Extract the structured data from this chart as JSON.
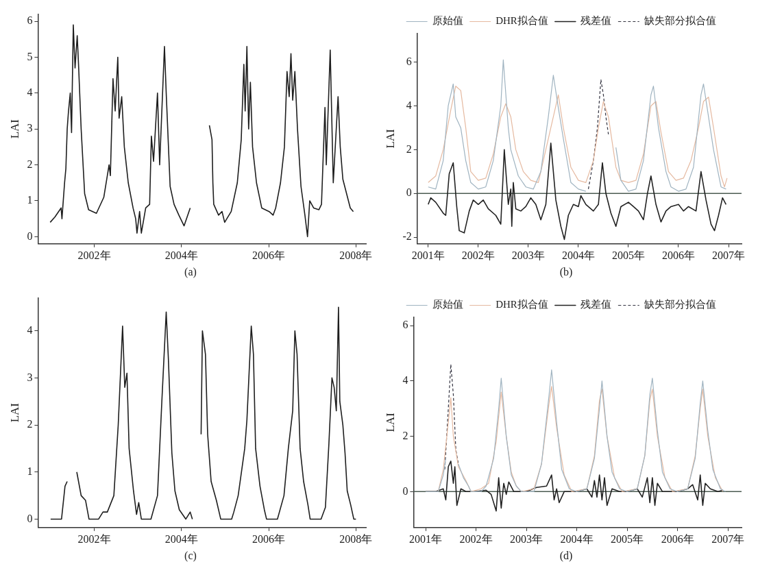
{
  "chart_data": [
    {
      "type": "line",
      "ylabel": "LAI",
      "annotations": [
        "(a)"
      ],
      "xlim": [
        2000.71,
        2008.23
      ],
      "xticks": [
        {
          "value": 2002,
          "label": "2002年"
        },
        {
          "value": 2004,
          "label": "2004年"
        },
        {
          "value": 2006,
          "label": "2006年"
        },
        {
          "value": 2008,
          "label": "2008年"
        }
      ],
      "ylim": [
        -0.2,
        6.2
      ],
      "yticks": [
        0,
        1,
        2,
        3,
        4,
        5,
        6
      ],
      "grid": false,
      "legend": false,
      "marker": "none",
      "series": [
        {
          "color": "#1e1e1e",
          "x": [
            2000.99,
            2001.1,
            2001.24,
            2001.26,
            2001.32,
            2001.35,
            2001.38,
            2001.41,
            2001.45,
            2001.48,
            2001.52,
            2001.56,
            2001.61,
            2001.64,
            2001.7,
            2001.78,
            2001.87,
            2002.05,
            2002.22,
            2002.34,
            2002.37,
            2002.43,
            2002.48,
            2002.54,
            2002.57,
            2002.63,
            2002.69,
            2002.78,
            2002.89,
            2002.95,
            2002.98,
            2003.04,
            2003.08,
            2003.18,
            2003.27,
            2003.31,
            2003.36,
            2003.45,
            2003.5,
            2003.56,
            2003.61,
            2003.65,
            2003.74,
            2003.83,
            2003.94,
            2004.06,
            2004.2,
            2004.4,
            2004.64,
            2004.7,
            2004.72,
            2004.74,
            2004.85,
            2004.93,
            2004.99,
            2005.14,
            2005.28,
            2005.37,
            2005.43,
            2005.46,
            2005.5,
            2005.54,
            2005.58,
            2005.63,
            2005.72,
            2005.84,
            2006.01,
            2006.1,
            2006.16,
            2006.27,
            2006.36,
            2006.42,
            2006.47,
            2006.51,
            2006.55,
            2006.6,
            2006.66,
            2006.74,
            2006.83,
            2006.89,
            2006.94,
            2007.03,
            2007.15,
            2007.21,
            2007.29,
            2007.32,
            2007.41,
            2007.48,
            2007.59,
            2007.64,
            2007.7,
            2007.87,
            2007.94
          ],
          "values": [
            0.4,
            0.55,
            0.8,
            0.5,
            1.5,
            1.9,
            3.0,
            3.5,
            4.0,
            2.9,
            5.9,
            4.7,
            5.6,
            4.8,
            3.0,
            1.2,
            0.75,
            0.65,
            1.1,
            2.0,
            1.7,
            4.4,
            3.5,
            5.0,
            3.3,
            3.9,
            2.5,
            1.5,
            0.8,
            0.5,
            0.1,
            0.7,
            0.1,
            0.8,
            0.9,
            2.8,
            2.1,
            4.0,
            2.0,
            3.8,
            5.3,
            4.0,
            1.4,
            0.9,
            0.6,
            0.3,
            0.8,
            null,
            3.1,
            2.7,
            1.5,
            0.9,
            0.6,
            0.7,
            0.4,
            0.7,
            1.5,
            2.7,
            4.8,
            3.5,
            5.3,
            3.0,
            4.3,
            2.5,
            1.5,
            0.8,
            0.7,
            0.6,
            0.8,
            1.5,
            2.5,
            4.6,
            3.9,
            5.1,
            3.8,
            4.6,
            3.0,
            1.4,
            0.6,
            0.0,
            1.0,
            0.8,
            0.75,
            0.9,
            3.6,
            2.0,
            5.2,
            1.5,
            3.9,
            2.5,
            1.6,
            0.8,
            0.7
          ]
        }
      ]
    },
    {
      "type": "line",
      "ylabel": "LAI",
      "annotations": [
        "(b)"
      ],
      "xlim": [
        2000.78,
        2007.26
      ],
      "xticks": [
        {
          "value": 2001,
          "label": "2001年"
        },
        {
          "value": 2002,
          "label": "2002年"
        },
        {
          "value": 2003,
          "label": "2003年"
        },
        {
          "value": 2004,
          "label": "2004年"
        },
        {
          "value": 2005,
          "label": "2005年"
        },
        {
          "value": 2006,
          "label": "2006年"
        },
        {
          "value": 2007,
          "label": "2007年"
        }
      ],
      "ylim": [
        -2.3,
        7.3
      ],
      "yticks": [
        -2,
        0,
        2,
        4,
        6
      ],
      "grid": false,
      "legend": "top",
      "marker": "none",
      "ref_lines": [
        {
          "axis": "y",
          "value": 0,
          "color": "#4a5a50"
        }
      ],
      "series": [
        {
          "name": "原始值",
          "color": "#9fb3c0",
          "x": [
            2001.0,
            2001.15,
            2001.3,
            2001.4,
            2001.5,
            2001.55,
            2001.65,
            2001.75,
            2001.85,
            2002.0,
            2002.15,
            2002.3,
            2002.45,
            2002.5,
            2002.6,
            2002.65,
            2002.8,
            2002.95,
            2003.1,
            2003.25,
            2003.4,
            2003.5,
            2003.6,
            2003.7,
            2003.85,
            2004.0,
            2004.15,
            2004.3,
            2004.75,
            2004.85,
            2005.0,
            2005.15,
            2005.3,
            2005.45,
            2005.5,
            2005.6,
            2005.75,
            2005.85,
            2006.0,
            2006.15,
            2006.3,
            2006.45,
            2006.5,
            2006.6,
            2006.7,
            2006.85,
            2006.95
          ],
          "values": [
            0.3,
            0.2,
            1.5,
            4.0,
            5.0,
            3.5,
            3.0,
            1.5,
            0.5,
            0.2,
            0.3,
            1.5,
            4.0,
            6.1,
            3.0,
            2.0,
            0.8,
            0.3,
            0.2,
            1.0,
            3.5,
            5.4,
            3.9,
            2.5,
            0.5,
            0.2,
            0.1,
            null,
            2.1,
            0.6,
            0.1,
            0.2,
            1.5,
            4.5,
            4.9,
            3.0,
            1.0,
            0.3,
            0.1,
            0.2,
            1.2,
            4.5,
            5.0,
            3.5,
            2.0,
            0.3,
            0.2
          ]
        },
        {
          "name": "DHR拟合值",
          "color": "#e5b9a0",
          "x": [
            2001.0,
            2001.15,
            2001.3,
            2001.45,
            2001.55,
            2001.65,
            2001.75,
            2001.85,
            2002.0,
            2002.15,
            2002.3,
            2002.45,
            2002.55,
            2002.65,
            2002.75,
            2002.9,
            2003.05,
            2003.2,
            2003.35,
            2003.45,
            2003.6,
            2003.7,
            2003.85,
            2004.0,
            2004.15,
            2004.3,
            2004.4,
            2004.5,
            2004.6,
            2004.75,
            2004.85,
            2005.0,
            2005.15,
            2005.3,
            2005.45,
            2005.55,
            2005.65,
            2005.8,
            2005.95,
            2006.1,
            2006.25,
            2006.4,
            2006.5,
            2006.6,
            2006.7,
            2006.85,
            2006.92,
            2006.97
          ],
          "values": [
            0.5,
            0.8,
            2.0,
            3.8,
            4.9,
            4.7,
            3.0,
            1.0,
            0.6,
            0.7,
            1.8,
            3.5,
            4.1,
            3.5,
            2.0,
            1.0,
            0.6,
            0.5,
            2.0,
            3.0,
            4.5,
            3.0,
            1.2,
            0.6,
            0.5,
            1.5,
            3.0,
            4.2,
            3.5,
            1.2,
            0.6,
            0.5,
            0.6,
            1.8,
            4.0,
            4.2,
            2.8,
            1.0,
            0.6,
            0.7,
            1.5,
            3.0,
            4.2,
            4.4,
            3.0,
            0.8,
            0.3,
            0.7
          ]
        },
        {
          "name": "残差值",
          "color": "#222222",
          "x": [
            2001.0,
            2001.05,
            2001.15,
            2001.3,
            2001.35,
            2001.42,
            2001.5,
            2001.57,
            2001.62,
            2001.72,
            2001.82,
            2001.9,
            2002.0,
            2002.1,
            2002.2,
            2002.35,
            2002.45,
            2002.5,
            2002.52,
            2002.6,
            2002.65,
            2002.67,
            2002.7,
            2002.75,
            2002.85,
            2002.95,
            2003.05,
            2003.15,
            2003.25,
            2003.35,
            2003.45,
            2003.55,
            2003.65,
            2003.72,
            2003.8,
            2003.9,
            2004.0,
            2004.05,
            2004.15,
            2004.3,
            2004.4,
            2004.48,
            2004.55,
            2004.65,
            2004.75,
            2004.85,
            2005.0,
            2005.1,
            2005.2,
            2005.3,
            2005.38,
            2005.45,
            2005.55,
            2005.65,
            2005.75,
            2005.85,
            2006.0,
            2006.1,
            2006.2,
            2006.35,
            2006.45,
            2006.55,
            2006.65,
            2006.72,
            2006.8,
            2006.88,
            2006.95
          ],
          "values": [
            -0.5,
            -0.2,
            -0.4,
            -0.9,
            -1.0,
            0.9,
            1.4,
            -0.6,
            -1.7,
            -1.8,
            -0.8,
            -0.3,
            -0.5,
            -0.3,
            -0.7,
            -1.0,
            -1.4,
            1.0,
            2.0,
            -0.5,
            0.2,
            -1.5,
            0.5,
            -0.7,
            -0.8,
            -0.6,
            -0.2,
            -0.5,
            -1.2,
            -0.5,
            2.3,
            -0.3,
            -1.5,
            -2.1,
            -1.0,
            -0.5,
            -0.6,
            -0.1,
            -0.5,
            -0.8,
            -0.5,
            1.4,
            0.0,
            -0.9,
            -1.5,
            -0.6,
            -0.4,
            -0.6,
            -0.8,
            -1.2,
            0.0,
            0.8,
            -0.5,
            -1.3,
            -0.8,
            -0.6,
            -0.5,
            -0.8,
            -0.6,
            -0.8,
            1.0,
            -0.3,
            -1.4,
            -1.7,
            -1.0,
            -0.2,
            -0.5
          ]
        },
        {
          "name": "缺失部分拟合值",
          "color": "#333340",
          "line_style": "dashed",
          "x": [
            2004.2,
            2004.3,
            2004.38,
            2004.45,
            2004.5,
            2004.55,
            2004.6
          ],
          "values": [
            0.2,
            1.5,
            3.0,
            5.2,
            4.5,
            3.5,
            2.7
          ]
        }
      ]
    },
    {
      "type": "line",
      "ylabel": "LAI",
      "annotations": [
        "(c)"
      ],
      "xlim": [
        2000.71,
        2008.23
      ],
      "xticks": [
        {
          "value": 2002,
          "label": "2002年"
        },
        {
          "value": 2004,
          "label": "2004年"
        },
        {
          "value": 2006,
          "label": "2006年"
        },
        {
          "value": 2008,
          "label": "2008年"
        }
      ],
      "ylim": [
        -0.18,
        4.7
      ],
      "yticks": [
        0,
        1,
        2,
        3,
        4
      ],
      "grid": false,
      "legend": false,
      "marker": "none",
      "series": [
        {
          "color": "#1e1e1e",
          "x": [
            2001.0,
            2001.25,
            2001.33,
            2001.38,
            2001.5,
            2001.6,
            2001.7,
            2001.8,
            2001.88,
            2002.1,
            2002.2,
            2002.3,
            2002.45,
            2002.55,
            2002.65,
            2002.7,
            2002.75,
            2002.8,
            2002.9,
            2002.97,
            2003.02,
            2003.08,
            2003.3,
            2003.45,
            2003.55,
            2003.65,
            2003.7,
            2003.78,
            2003.85,
            2003.95,
            2004.1,
            2004.2,
            2004.25,
            2004.35,
            2004.45,
            2004.48,
            2004.55,
            2004.6,
            2004.68,
            2004.8,
            2004.9,
            2005.15,
            2005.2,
            2005.3,
            2005.45,
            2005.5,
            2005.6,
            2005.65,
            2005.7,
            2005.8,
            2005.9,
            2005.95,
            2006.2,
            2006.35,
            2006.45,
            2006.55,
            2006.6,
            2006.65,
            2006.72,
            2006.8,
            2006.9,
            2006.95,
            2007.2,
            2007.3,
            2007.38,
            2007.45,
            2007.5,
            2007.55,
            2007.6,
            2007.63,
            2007.7,
            2007.75,
            2007.8,
            2007.88,
            2007.95,
            2008.0
          ],
          "values": [
            0,
            0,
            0.7,
            0.8,
            null,
            1.0,
            0.5,
            0.4,
            0,
            0,
            0.15,
            0.15,
            0.5,
            2.0,
            4.1,
            2.8,
            3.1,
            1.5,
            0.6,
            0.1,
            0.35,
            0,
            0,
            0.5,
            2.5,
            4.4,
            3.4,
            1.4,
            0.6,
            0.2,
            0,
            0.15,
            0,
            null,
            1.8,
            4.0,
            3.5,
            1.8,
            0.8,
            0.4,
            0,
            0,
            0.15,
            0.5,
            1.5,
            2.1,
            4.1,
            3.5,
            1.5,
            0.7,
            0.2,
            0,
            0,
            0.5,
            1.5,
            2.3,
            4.0,
            3.5,
            1.5,
            0.8,
            0.3,
            0,
            0,
            0.25,
            1.6,
            3.0,
            2.8,
            2.3,
            4.5,
            2.5,
            2.0,
            1.4,
            0.6,
            0.3,
            0,
            0
          ]
        }
      ]
    },
    {
      "type": "line",
      "ylabel": "LAI",
      "annotations": [
        "(d)"
      ],
      "xlim": [
        2000.76,
        2007.27
      ],
      "xticks": [
        {
          "value": 2001,
          "label": "2001年"
        },
        {
          "value": 2002,
          "label": "2002年"
        },
        {
          "value": 2003,
          "label": "2003年"
        },
        {
          "value": 2004,
          "label": "2004年"
        },
        {
          "value": 2005,
          "label": "2005年"
        },
        {
          "value": 2006,
          "label": "2006年"
        },
        {
          "value": 2007,
          "label": "2007年"
        }
      ],
      "ylim": [
        -1.3,
        6.3
      ],
      "yticks": [
        0,
        2,
        4,
        6
      ],
      "grid": false,
      "legend": "top",
      "marker": "none",
      "ref_lines": [
        {
          "axis": "y",
          "value": 0,
          "color": "#4a5a50"
        }
      ],
      "series": [
        {
          "name": "原始值",
          "color": "#9fb3c0",
          "x": [
            2001.0,
            2001.25,
            2001.35,
            2001.4,
            2001.45,
            2001.65,
            2001.75,
            2001.85,
            2001.9,
            2002.1,
            2002.2,
            2002.35,
            2002.45,
            2002.5,
            2002.6,
            2002.7,
            2002.8,
            2002.9,
            2003.15,
            2003.3,
            2003.45,
            2003.5,
            2003.6,
            2003.7,
            2003.85,
            2004.0,
            2004.2,
            2004.35,
            2004.45,
            2004.5,
            2004.6,
            2004.7,
            2004.85,
            2005.0,
            2005.2,
            2005.35,
            2005.45,
            2005.5,
            2005.6,
            2005.7,
            2005.85,
            2006.0,
            2006.2,
            2006.35,
            2006.45,
            2006.5,
            2006.6,
            2006.7,
            2006.85,
            2006.95
          ],
          "values": [
            0,
            0,
            0.6,
            1.2,
            null,
            1.0,
            0.5,
            0.2,
            0,
            0,
            0.2,
            1.2,
            3.0,
            4.1,
            2.0,
            0.6,
            0.2,
            0,
            0,
            1.0,
            3.5,
            4.4,
            2.5,
            0.8,
            0.1,
            0,
            0.1,
            1.2,
            3.0,
            4.0,
            2.0,
            0.7,
            0.1,
            0,
            0.1,
            1.3,
            3.5,
            4.1,
            2.2,
            0.7,
            0.1,
            0,
            0.1,
            1.2,
            3.2,
            4.0,
            2.2,
            0.8,
            0.1,
            0
          ]
        },
        {
          "name": "DHR拟合值",
          "color": "#e5b9a0",
          "x": [
            2001.0,
            2001.25,
            2001.35,
            2001.45,
            2001.5,
            2001.55,
            2001.65,
            2001.8,
            2001.9,
            2002.1,
            2002.25,
            2002.4,
            2002.5,
            2002.6,
            2002.7,
            2002.8,
            2002.9,
            2003.15,
            2003.3,
            2003.45,
            2003.5,
            2003.6,
            2003.75,
            2003.9,
            2004.2,
            2004.35,
            2004.45,
            2004.5,
            2004.6,
            2004.75,
            2004.9,
            2005.2,
            2005.35,
            2005.45,
            2005.5,
            2005.6,
            2005.75,
            2005.9,
            2006.2,
            2006.35,
            2006.45,
            2006.5,
            2006.6,
            2006.75,
            2006.9
          ],
          "values": [
            0,
            0,
            0.8,
            2.5,
            3.4,
            2.0,
            0.9,
            0.4,
            0,
            0.1,
            0.3,
            1.8,
            3.6,
            2.0,
            0.7,
            0.2,
            0,
            0.1,
            1.0,
            3.2,
            3.8,
            2.3,
            0.6,
            0,
            0.1,
            1.3,
            3.3,
            3.7,
            2.0,
            0.5,
            0,
            0.1,
            1.3,
            3.3,
            3.7,
            2.0,
            0.5,
            0,
            0.1,
            1.3,
            3.0,
            3.7,
            2.0,
            0.5,
            0
          ]
        },
        {
          "name": "残差值",
          "color": "#222222",
          "x": [
            2001.0,
            2001.2,
            2001.35,
            2001.4,
            2001.45,
            2001.5,
            2001.55,
            2001.58,
            2001.62,
            2001.7,
            2001.8,
            2002.0,
            2002.2,
            2002.3,
            2002.4,
            2002.45,
            2002.5,
            2002.55,
            2002.6,
            2002.65,
            2002.75,
            2003.0,
            2003.2,
            2003.4,
            2003.5,
            2003.55,
            2003.6,
            2003.65,
            2003.75,
            2004.0,
            2004.2,
            2004.3,
            2004.35,
            2004.4,
            2004.45,
            2004.5,
            2004.55,
            2004.6,
            2004.7,
            2004.85,
            2005.0,
            2005.2,
            2005.3,
            2005.4,
            2005.45,
            2005.5,
            2005.55,
            2005.6,
            2005.7,
            2006.0,
            2006.2,
            2006.3,
            2006.4,
            2006.45,
            2006.5,
            2006.55,
            2006.65,
            2006.8,
            2006.9
          ],
          "values": [
            0,
            0,
            0.1,
            -0.3,
            0.9,
            1.1,
            0.3,
            0.9,
            -0.5,
            0.1,
            0,
            0,
            0.05,
            -0.1,
            -0.7,
            0.5,
            -0.6,
            0.3,
            -0.1,
            0.35,
            0,
            0,
            0.15,
            0.2,
            0.6,
            -0.3,
            0.1,
            -0.4,
            0,
            0,
            0.1,
            -0.2,
            0.4,
            -0.2,
            0.6,
            -0.3,
            0.5,
            -0.5,
            0.1,
            0,
            0,
            0.1,
            -0.2,
            0.5,
            -0.4,
            0.5,
            -0.5,
            0.3,
            0,
            0,
            0.1,
            0.25,
            -0.3,
            0.6,
            -0.5,
            0.3,
            0.1,
            0,
            0.05
          ]
        },
        {
          "name": "缺失部分拟合值",
          "color": "#333340",
          "line_style": "dashed",
          "x": [
            2001.38,
            2001.45,
            2001.5,
            2001.55,
            2001.6,
            2001.65
          ],
          "values": [
            0.8,
            3.0,
            4.6,
            3.5,
            1.5,
            1.0
          ]
        }
      ]
    }
  ]
}
